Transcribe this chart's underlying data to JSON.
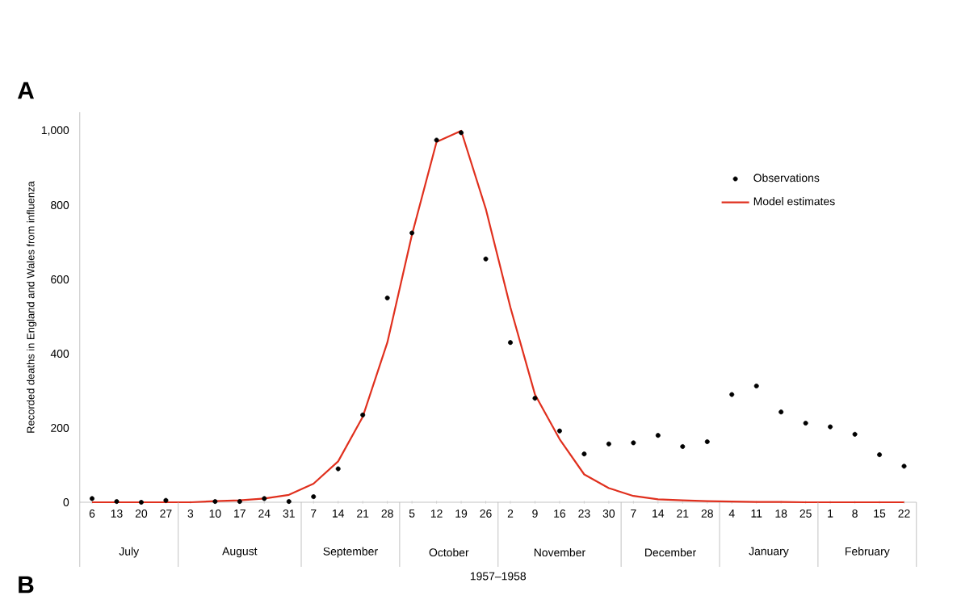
{
  "chart_data": {
    "type": "scatter",
    "xlabel": "1957–1958",
    "ylabel": "Recorded deaths in England and Wales from influenza",
    "categories": [
      "6",
      "13",
      "20",
      "27",
      "3",
      "10",
      "17",
      "24",
      "31",
      "7",
      "14",
      "21",
      "28",
      "5",
      "12",
      "19",
      "26",
      "2",
      "9",
      "16",
      "23",
      "30",
      "7",
      "14",
      "21",
      "28",
      "4",
      "11",
      "18",
      "25",
      "1",
      "8",
      "15",
      "22"
    ],
    "series": [
      {
        "name": "Observations",
        "color": "#000000",
        "marker": "circle",
        "values": [
          10,
          2,
          0,
          5,
          null,
          2,
          2,
          10,
          2,
          15,
          90,
          235,
          550,
          725,
          975,
          995,
          655,
          430,
          280,
          192,
          130,
          157,
          160,
          180,
          150,
          163,
          290,
          313,
          243,
          213,
          203,
          183,
          128,
          97
        ]
      },
      {
        "name": "Model estimates",
        "type": "line",
        "color": "#e0301e",
        "marker": "none",
        "line_style": "solid",
        "values": [
          0,
          0,
          0,
          0,
          0,
          3,
          5,
          10,
          20,
          50,
          110,
          230,
          430,
          720,
          970,
          1000,
          790,
          525,
          290,
          170,
          75,
          38,
          17,
          8,
          5,
          3,
          2,
          1,
          1,
          0,
          0,
          0,
          0,
          0
        ]
      }
    ],
    "ylim": [
      0,
      1050
    ],
    "yticks": [
      0,
      200,
      400,
      600,
      800,
      {
        "value": 1000,
        "label": "1,000"
      }
    ],
    "grid": false,
    "legend": "top right",
    "annotations": [
      "July",
      "August",
      "September",
      "October",
      "November",
      "December",
      "January",
      "February",
      "A",
      "B"
    ]
  }
}
